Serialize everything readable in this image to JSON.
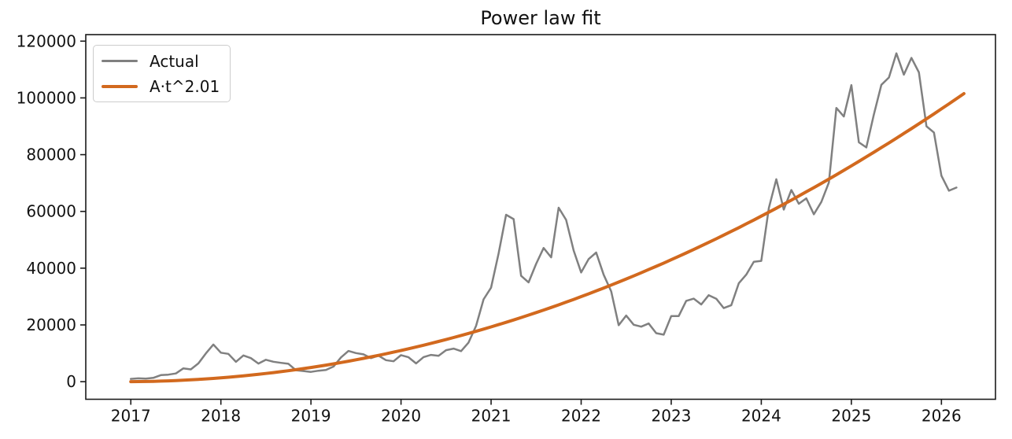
{
  "title": "Power law fit",
  "legend": {
    "items": [
      {
        "label": "Actual",
        "color": "#808080",
        "line_width": 2.5
      },
      {
        "label": "A·t^2.01",
        "color": "#d2691e",
        "line_width": 4
      }
    ]
  },
  "axes": {
    "xlim": [
      2016.5,
      2026.6
    ],
    "ylim": [
      -6200,
      122300
    ],
    "x_ticks": [
      2017,
      2018,
      2019,
      2020,
      2021,
      2022,
      2023,
      2024,
      2025,
      2026
    ],
    "y_ticks": [
      0,
      20000,
      40000,
      60000,
      80000,
      100000,
      120000
    ],
    "spine_color": "#1a1a1a"
  },
  "chart_data": {
    "type": "line",
    "title": "Power law fit",
    "xlabel": "",
    "ylabel": "",
    "grid": false,
    "legend_position": "upper left",
    "x_start": 2017.0,
    "x_step": 0.0833333,
    "xlim": [
      2016.5,
      2026.6
    ],
    "ylim": [
      -6200,
      122300
    ],
    "series": [
      {
        "name": "Actual",
        "color": "#808080",
        "line_width": 2.5,
        "values": [
          970,
          1180,
          1080,
          1350,
          2300,
          2480,
          2880,
          4700,
          4340,
          6450,
          9950,
          13100,
          10200,
          9800,
          7000,
          9240,
          8300,
          6400,
          7730,
          7030,
          6630,
          6300,
          4020,
          3740,
          3460,
          3850,
          4100,
          5320,
          8560,
          10820,
          10080,
          9630,
          8290,
          9150,
          7570,
          7190,
          9350,
          8600,
          6440,
          8660,
          9450,
          9140,
          11100,
          11650,
          10780,
          13800,
          19700,
          29000,
          33100,
          45200,
          58800,
          57300,
          37300,
          35000,
          41500,
          47100,
          43800,
          61300,
          57000,
          46200,
          38500,
          43200,
          45500,
          37700,
          31800,
          19900,
          23300,
          20050,
          19400,
          20500,
          17100,
          16550,
          23130,
          23140,
          28470,
          29250,
          27220,
          30480,
          29230,
          25930,
          26960,
          34660,
          37720,
          42270,
          42580,
          61200,
          71330,
          60640,
          67540,
          62680,
          64620,
          58970,
          63330,
          70220,
          96450,
          93430,
          104500,
          84350,
          82550,
          94200,
          104600,
          107200,
          115700,
          108200,
          114100,
          109000,
          90000,
          87800,
          72600,
          67300,
          68400
        ]
      },
      {
        "name": "A·t^2.01",
        "color": "#d2691e",
        "line_width": 4,
        "fit_formula": "A*(t-t0)^p",
        "params": {
          "A": 1138,
          "t0": 2016.91,
          "p": 2.01
        },
        "x_start": 2017.0,
        "x_end": 2026.25
      }
    ]
  }
}
